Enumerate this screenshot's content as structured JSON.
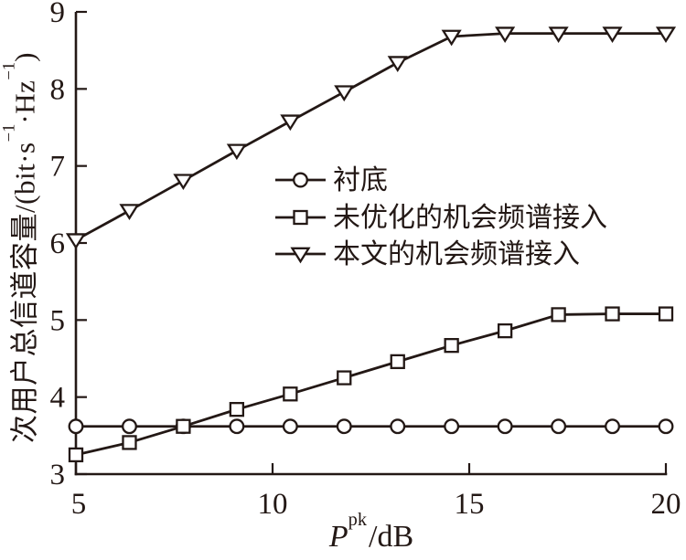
{
  "figure": {
    "background": "#ffffff",
    "ink_color": "#231815"
  },
  "chart_data": {
    "type": "line",
    "title": "",
    "xlabel": "P^pk/dB",
    "xlabel_parts": {
      "symbol": "P",
      "superscript": "pk",
      "suffix": "/dB"
    },
    "ylabel": "次用户总信道容量/(bit·s^-1·Hz^-1)",
    "ylabel_parts": {
      "prefix": "次用户总信道容量/(bit·s",
      "sup1": "−1",
      "mid": "·Hz",
      "sup2": "−1",
      "suffix": ")"
    },
    "xlim": [
      5,
      20
    ],
    "ylim": [
      3,
      9
    ],
    "x_ticks": [
      "5",
      "10",
      "15",
      "20"
    ],
    "x_tick_values": [
      5,
      10,
      15,
      20
    ],
    "y_ticks": [
      "3",
      "4",
      "5",
      "6",
      "7",
      "8",
      "9"
    ],
    "y_tick_values": [
      3,
      4,
      5,
      6,
      7,
      8,
      9
    ],
    "grid": false,
    "legend_position": "inside-center",
    "x": [
      5,
      6.36,
      7.73,
      9.09,
      10.45,
      11.82,
      13.18,
      14.55,
      15.91,
      17.27,
      18.64,
      20
    ],
    "series": [
      {
        "name": "衬底",
        "marker": "circle",
        "values": [
          3.62,
          3.62,
          3.62,
          3.62,
          3.62,
          3.62,
          3.62,
          3.62,
          3.62,
          3.62,
          3.62,
          3.62
        ]
      },
      {
        "name": "未优化的机会频谱接入",
        "marker": "square",
        "values": [
          3.25,
          3.41,
          3.62,
          3.84,
          4.04,
          4.25,
          4.46,
          4.67,
          4.86,
          5.07,
          5.08,
          5.08
        ]
      },
      {
        "name": "本文的机会频谱接入",
        "marker": "triangle-down",
        "values": [
          6.04,
          6.42,
          6.81,
          7.2,
          7.58,
          7.96,
          8.34,
          8.68,
          8.72,
          8.72,
          8.72,
          8.72
        ]
      }
    ]
  }
}
